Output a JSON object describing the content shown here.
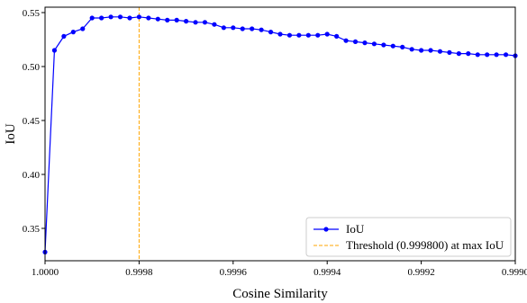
{
  "chart_data": {
    "type": "line",
    "xlabel": "Cosine Similarity",
    "ylabel": "IoU",
    "x_reversed": true,
    "xlim": [
      1.0,
      0.999
    ],
    "ylim": [
      0.32,
      0.555
    ],
    "x_ticks": [
      1.0,
      0.9998,
      0.9996,
      0.9994,
      0.9992,
      0.999
    ],
    "x_tick_labels": [
      "1.0000",
      "0.9998",
      "0.9996",
      "0.9994",
      "0.9992",
      "0.9990"
    ],
    "y_ticks": [
      0.35,
      0.4,
      0.45,
      0.5,
      0.55
    ],
    "y_tick_labels": [
      "0.35",
      "0.40",
      "0.45",
      "0.50",
      "0.55"
    ],
    "grid": false,
    "legend_position": "lower-right",
    "series": [
      {
        "name": "IoU",
        "color": "#0000ff",
        "marker": "circle",
        "x": [
          1.0,
          0.99998,
          0.99996,
          0.99994,
          0.99992,
          0.9999,
          0.99988,
          0.99986,
          0.99984,
          0.99982,
          0.9998,
          0.99978,
          0.99976,
          0.99974,
          0.99972,
          0.9997,
          0.99968,
          0.99966,
          0.99964,
          0.99962,
          0.9996,
          0.99958,
          0.99956,
          0.99954,
          0.99952,
          0.9995,
          0.99948,
          0.99946,
          0.99944,
          0.99942,
          0.9994,
          0.99938,
          0.99936,
          0.99934,
          0.99932,
          0.9993,
          0.99928,
          0.99926,
          0.99924,
          0.99922,
          0.9992,
          0.99918,
          0.99916,
          0.99914,
          0.99912,
          0.9991,
          0.99908,
          0.99906,
          0.99904,
          0.99902,
          0.999
        ],
        "y": [
          0.328,
          0.515,
          0.528,
          0.532,
          0.535,
          0.545,
          0.545,
          0.546,
          0.546,
          0.545,
          0.546,
          0.545,
          0.544,
          0.543,
          0.543,
          0.542,
          0.541,
          0.541,
          0.539,
          0.536,
          0.536,
          0.535,
          0.535,
          0.534,
          0.532,
          0.53,
          0.529,
          0.529,
          0.529,
          0.529,
          0.53,
          0.528,
          0.524,
          0.523,
          0.522,
          0.521,
          0.52,
          0.519,
          0.518,
          0.516,
          0.515,
          0.515,
          0.514,
          0.513,
          0.512,
          0.512,
          0.511,
          0.511,
          0.511,
          0.511,
          0.51
        ]
      },
      {
        "name": "Threshold (0.999800) at max IoU",
        "color": "#ffa500",
        "style": "dashed",
        "x_value": 0.9998
      }
    ]
  }
}
